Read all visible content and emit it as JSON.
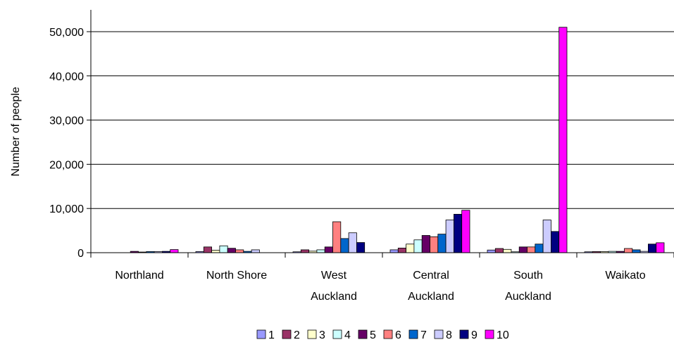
{
  "chart_data": {
    "type": "bar",
    "title": "",
    "xlabel": "",
    "ylabel": "Number of people",
    "ylim": [
      0,
      55000
    ],
    "yticks": [
      0,
      10000,
      20000,
      30000,
      40000,
      50000
    ],
    "ytick_labels": [
      "0",
      "10,000",
      "20,000",
      "30,000",
      "40,000",
      "50,000"
    ],
    "grid": true,
    "legend_position": "bottom",
    "categories": [
      [
        "Northland"
      ],
      [
        "North Shore"
      ],
      [
        "West",
        "Auckland"
      ],
      [
        "Central",
        "Auckland"
      ],
      [
        "South",
        "Auckland"
      ],
      [
        "Waikato"
      ]
    ],
    "series": [
      {
        "name": "1",
        "color": "#9999ff",
        "values": [
          0,
          250,
          200,
          650,
          600,
          200
        ]
      },
      {
        "name": "2",
        "color": "#993366",
        "values": [
          0,
          1300,
          650,
          1050,
          950,
          250
        ]
      },
      {
        "name": "3",
        "color": "#ffffcc",
        "values": [
          0,
          550,
          350,
          1950,
          750,
          250
        ]
      },
      {
        "name": "4",
        "color": "#ccffff",
        "values": [
          0,
          1550,
          650,
          2900,
          200,
          300
        ]
      },
      {
        "name": "5",
        "color": "#660066",
        "values": [
          300,
          1000,
          1300,
          3900,
          1300,
          300
        ]
      },
      {
        "name": "6",
        "color": "#ff8080",
        "values": [
          150,
          650,
          7000,
          3600,
          1300,
          950
        ]
      },
      {
        "name": "7",
        "color": "#0066cc",
        "values": [
          250,
          300,
          3200,
          4200,
          1950,
          650
        ]
      },
      {
        "name": "8",
        "color": "#ccccff",
        "values": [
          250,
          650,
          4500,
          7400,
          7400,
          300
        ]
      },
      {
        "name": "9",
        "color": "#000080",
        "values": [
          300,
          0,
          2300,
          8700,
          4800,
          1950
        ]
      },
      {
        "name": "10",
        "color": "#ff00ff",
        "values": [
          700,
          0,
          0,
          9600,
          51000,
          2250
        ]
      }
    ]
  }
}
